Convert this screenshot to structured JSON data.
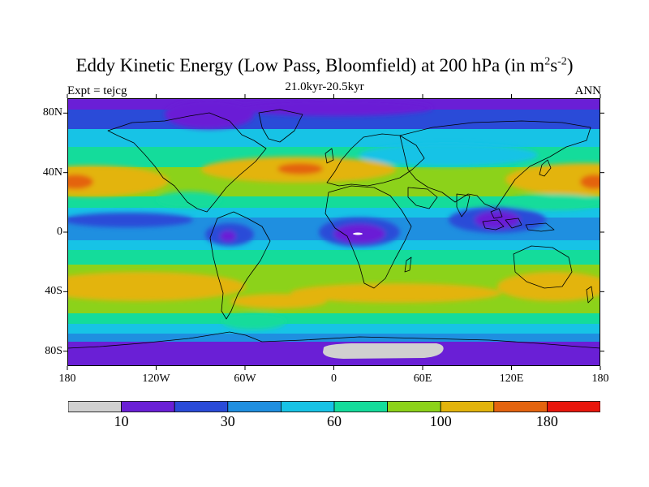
{
  "title": {
    "main": "Eddy Kinetic Energy (Low Pass, Bloomfield) at 200 hPa (in m",
    "sup1": "2",
    "mid": "s",
    "sup2": "-2",
    "end": ")"
  },
  "subtitle": "21.0kyr-20.5kyr",
  "left_label": "Expt = tejcg",
  "right_label": "ANN",
  "lat_ticks": [
    {
      "label": "80N",
      "lat": 80
    },
    {
      "label": "40N",
      "lat": 40
    },
    {
      "label": "0",
      "lat": 0
    },
    {
      "label": "40S",
      "lat": -40
    },
    {
      "label": "80S",
      "lat": -80
    }
  ],
  "lon_ticks": [
    {
      "label": "180",
      "lon": -180
    },
    {
      "label": "120W",
      "lon": -120
    },
    {
      "label": "60W",
      "lon": -60
    },
    {
      "label": "0",
      "lon": 0
    },
    {
      "label": "60E",
      "lon": 60
    },
    {
      "label": "120E",
      "lon": 120
    },
    {
      "label": "180",
      "lon": 180
    }
  ],
  "colorbar": {
    "colors": [
      "#d0d0d0",
      "#6a1fd6",
      "#2a4bd8",
      "#1f8fe0",
      "#17c3e6",
      "#14dc9b",
      "#8cd21a",
      "#e3b40c",
      "#e4640f",
      "#e8160c"
    ],
    "labels": [
      {
        "text": "10",
        "index": 1
      },
      {
        "text": "30",
        "index": 3
      },
      {
        "text": "60",
        "index": 5
      },
      {
        "text": "100",
        "index": 7
      },
      {
        "text": "180",
        "index": 9
      }
    ]
  }
}
